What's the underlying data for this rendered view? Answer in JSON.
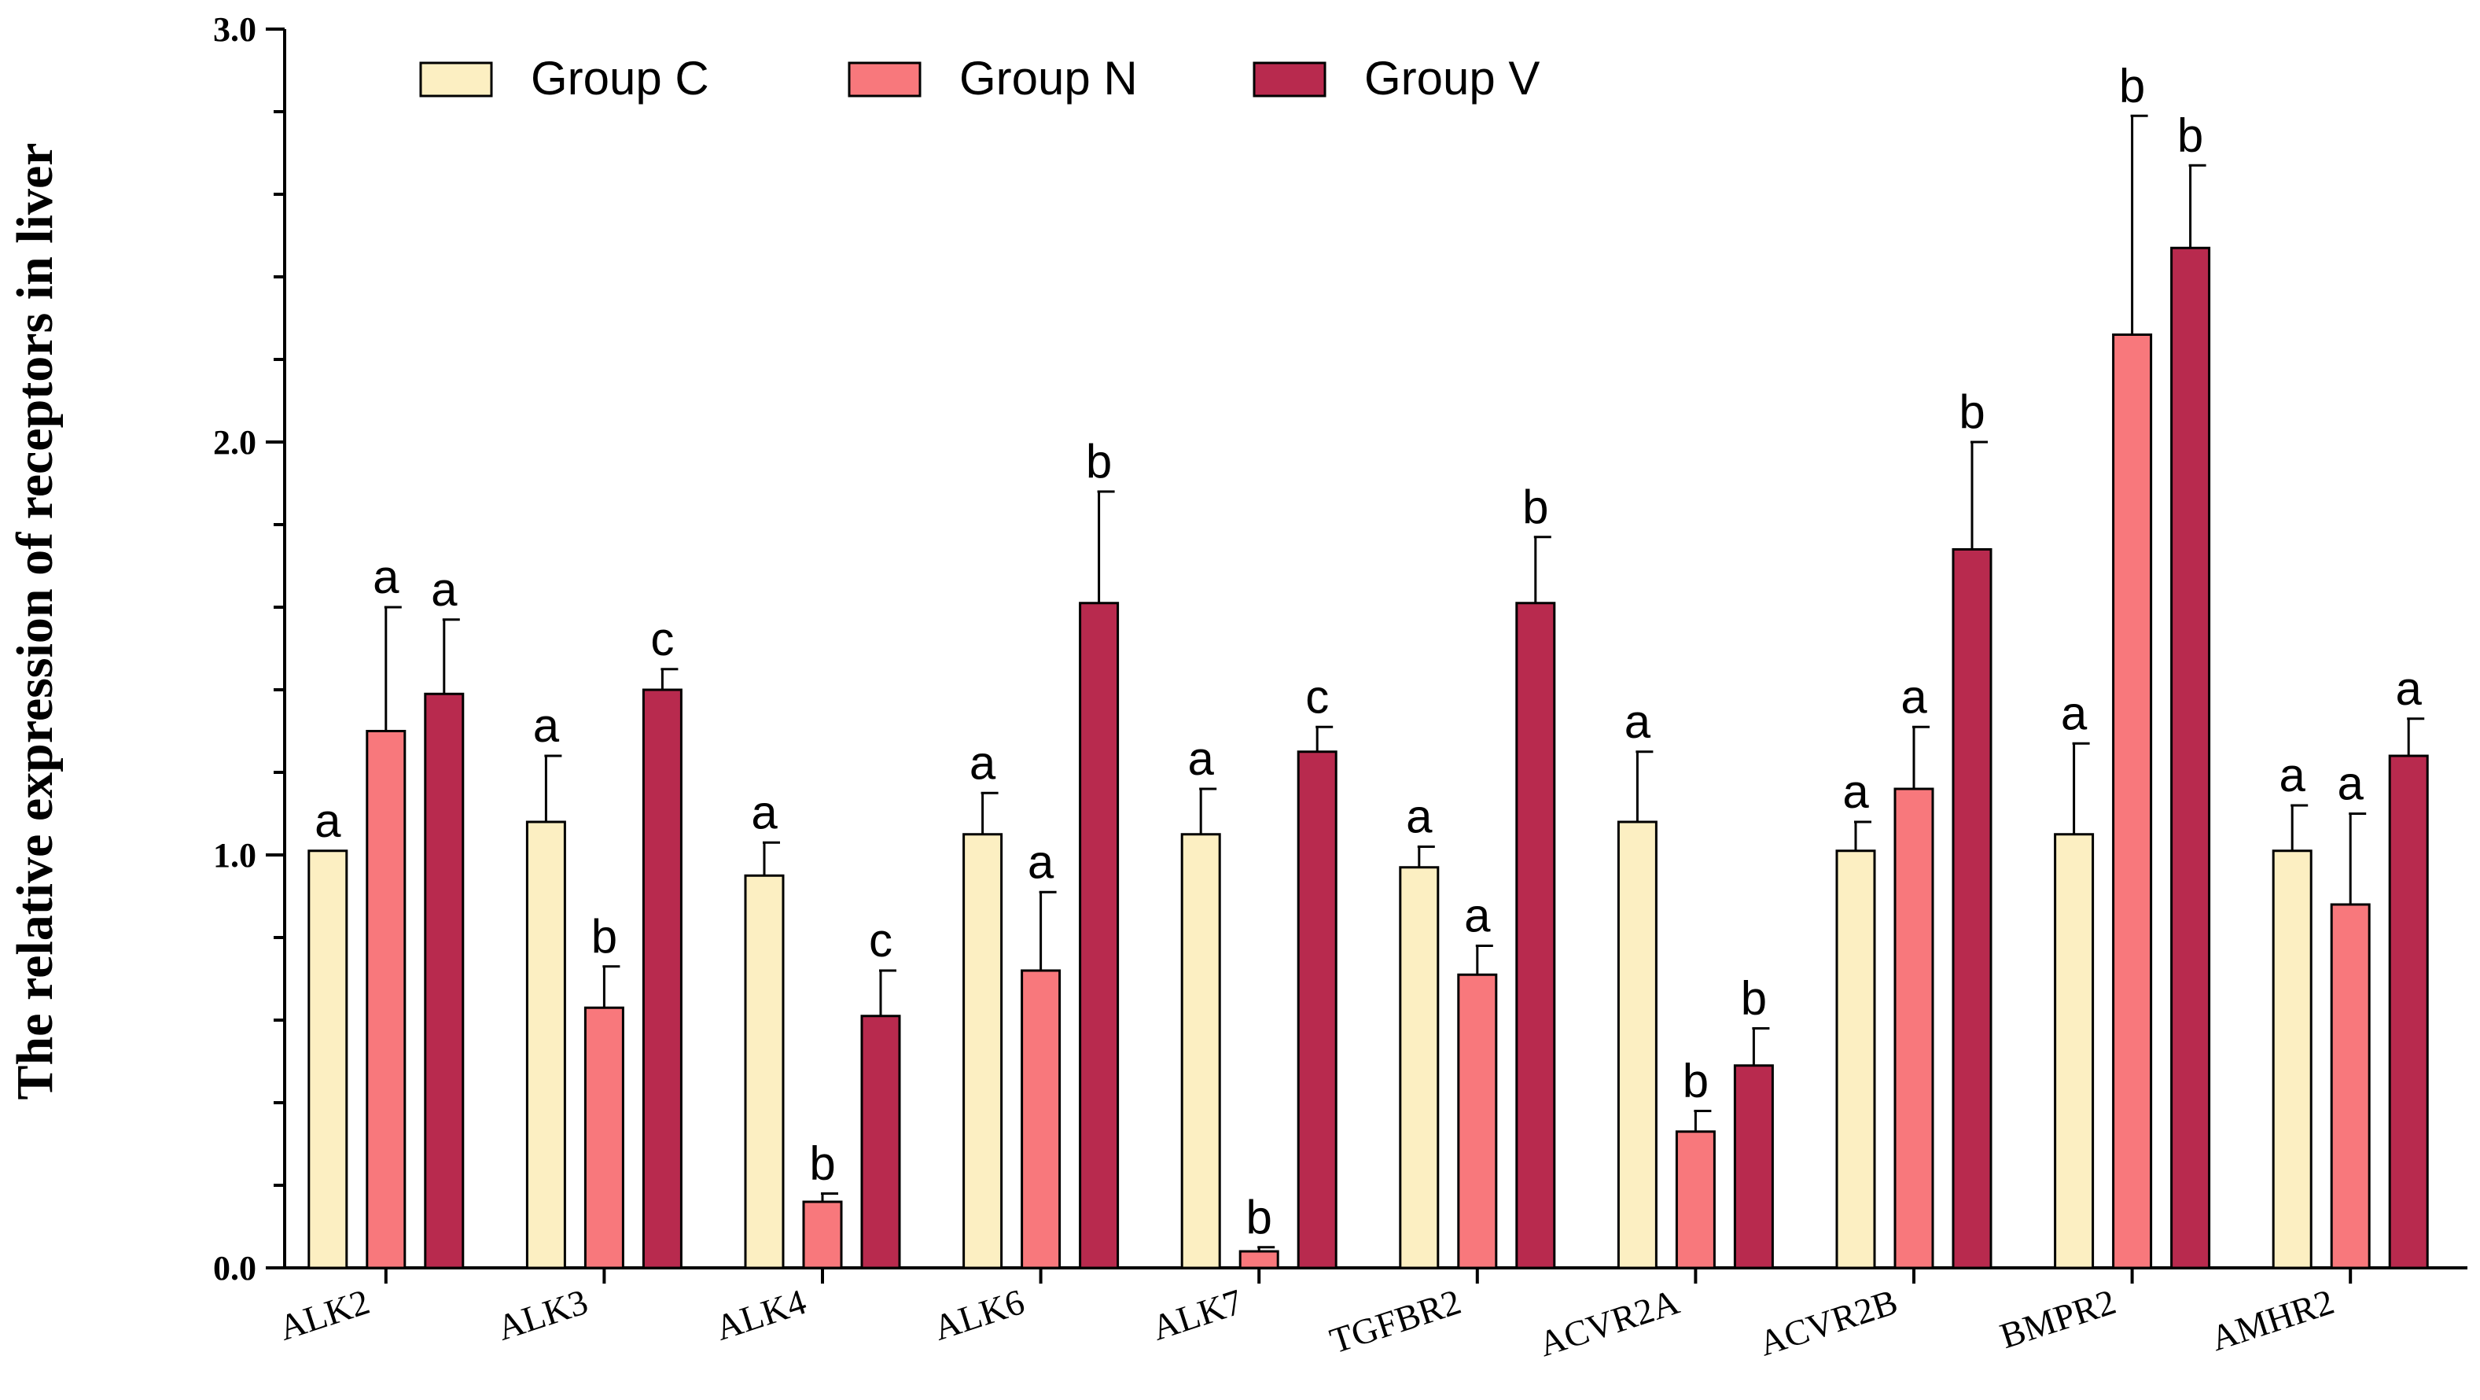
{
  "chart_data": {
    "type": "bar",
    "ylabel": "The relative expression of receptors in liver",
    "xlabel": "",
    "ylim": [
      0,
      3.0
    ],
    "yticks": [
      0.0,
      1.0,
      2.0,
      3.0
    ],
    "ytick_labels": [
      "0.0",
      "1.0",
      "2.0",
      "3.0"
    ],
    "minor_ticks_per_interval": 5,
    "legend_position": "top-left",
    "categories": [
      "ALK2",
      "ALK3",
      "ALK4",
      "ALK6",
      "ALK7",
      "TGFBR2",
      "ACVR2A",
      "ACVR2B",
      "BMPR2",
      "AMHR2"
    ],
    "series": [
      {
        "name": "Group C",
        "color": "#FCEFC2",
        "values": [
          1.01,
          1.08,
          0.95,
          1.05,
          1.05,
          0.97,
          1.08,
          1.01,
          1.05,
          1.01
        ],
        "errors": [
          0.0,
          0.16,
          0.08,
          0.1,
          0.11,
          0.05,
          0.17,
          0.07,
          0.22,
          0.11
        ],
        "labels": [
          "a",
          "a",
          "a",
          "a",
          "a",
          "a",
          "a",
          "a",
          "a",
          "a"
        ]
      },
      {
        "name": "Group N",
        "color": "#F8787C",
        "values": [
          1.3,
          0.63,
          0.16,
          0.72,
          0.04,
          0.71,
          0.33,
          1.16,
          2.26,
          0.88
        ],
        "errors": [
          0.3,
          0.1,
          0.02,
          0.19,
          0.01,
          0.07,
          0.05,
          0.15,
          0.53,
          0.22
        ],
        "labels": [
          "a",
          "b",
          "b",
          "a",
          "b",
          "a",
          "b",
          "a",
          "b",
          "a"
        ]
      },
      {
        "name": "Group V",
        "color": "#B82A4E",
        "values": [
          1.39,
          1.4,
          0.61,
          1.61,
          1.25,
          1.61,
          0.49,
          1.74,
          2.47,
          1.24
        ],
        "errors": [
          0.18,
          0.05,
          0.11,
          0.27,
          0.06,
          0.16,
          0.09,
          0.26,
          0.2,
          0.09
        ],
        "labels": [
          "a",
          "c",
          "c",
          "b",
          "c",
          "b",
          "b",
          "b",
          "b",
          "a"
        ]
      }
    ]
  }
}
